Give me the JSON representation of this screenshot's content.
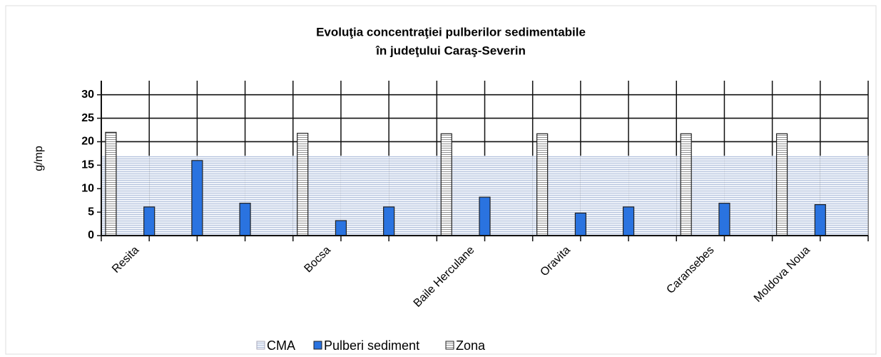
{
  "chart_data": {
    "type": "bar",
    "title": [
      "Evoluţia concentraţiei  pulberilor sedimentabile",
      "în judeţului Caraş-Severin"
    ],
    "y_label": "g/mp",
    "categories": [
      "Resita",
      null,
      null,
      null,
      "Bocsa",
      null,
      null,
      "Baile Herculane",
      null,
      "Oravita",
      null,
      null,
      "Caransebes",
      null,
      "Moldova Noua",
      null
    ],
    "series": [
      {
        "name": "CMA",
        "color": "#c9d3e6",
        "values": [
          17,
          17,
          17,
          17,
          17,
          17,
          17,
          17,
          17,
          17,
          17,
          17,
          17,
          17,
          17,
          17
        ]
      },
      {
        "name": "Pulberi sediment",
        "color": "#2a73e0",
        "values": [
          null,
          6.1,
          16,
          6.9,
          null,
          3.2,
          6.1,
          null,
          8.2,
          null,
          4.8,
          6.1,
          null,
          6.9,
          null,
          6.6
        ]
      },
      {
        "name": "Zona",
        "color": "#ffffff",
        "values": [
          22,
          null,
          null,
          null,
          21.8,
          null,
          null,
          21.7,
          null,
          21.7,
          null,
          null,
          21.7,
          null,
          21.7,
          null
        ]
      }
    ],
    "ylim": [
      0,
      33
    ],
    "yticks": [
      0,
      5,
      10,
      15,
      20,
      25,
      30
    ],
    "grid": true,
    "legend": "bottom"
  }
}
